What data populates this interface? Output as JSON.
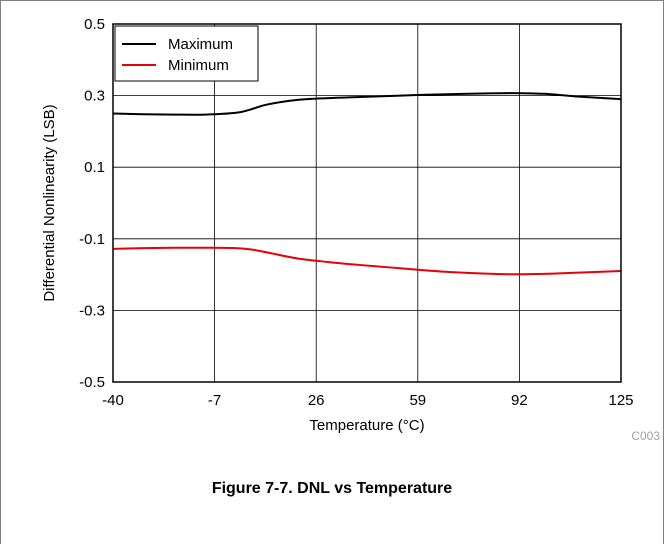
{
  "chart_data": {
    "type": "line",
    "title": "",
    "xlabel": "Temperature (°C)",
    "ylabel": "Differential Nonlinearity (LSB)",
    "xlim": [
      -40,
      125
    ],
    "ylim": [
      -0.5,
      0.5
    ],
    "xticks": [
      -40,
      -7,
      26,
      59,
      92,
      125
    ],
    "yticks": [
      -0.5,
      -0.3,
      -0.1,
      0.1,
      0.3,
      0.5
    ],
    "xtick_labels": [
      "-40",
      "-7",
      "26",
      "59",
      "92",
      "125"
    ],
    "ytick_labels": [
      "-0.5",
      "-0.3",
      "-0.1",
      "0.1",
      "0.3",
      "0.5"
    ],
    "grid": true,
    "legend_position": "top-left",
    "series": [
      {
        "name": "Maximum",
        "color": "#000000",
        "x": [
          -40,
          -30,
          -20,
          -10,
          0,
          5,
          10,
          20,
          30,
          40,
          50,
          60,
          70,
          80,
          90,
          100,
          110,
          125
        ],
        "y": [
          0.25,
          0.248,
          0.247,
          0.247,
          0.252,
          0.262,
          0.275,
          0.288,
          0.293,
          0.296,
          0.299,
          0.302,
          0.304,
          0.306,
          0.307,
          0.305,
          0.298,
          0.29
        ]
      },
      {
        "name": "Minimum",
        "color": "#e8000b",
        "x": [
          -40,
          -30,
          -20,
          -10,
          0,
          5,
          10,
          20,
          30,
          40,
          50,
          60,
          70,
          80,
          90,
          100,
          110,
          125
        ],
        "y": [
          -0.128,
          -0.126,
          -0.125,
          -0.125,
          -0.126,
          -0.13,
          -0.138,
          -0.155,
          -0.165,
          -0.173,
          -0.18,
          -0.187,
          -0.193,
          -0.197,
          -0.199,
          -0.198,
          -0.195,
          -0.19
        ]
      }
    ],
    "code_label": "C003"
  },
  "caption": "Figure 7-7. DNL vs Temperature"
}
